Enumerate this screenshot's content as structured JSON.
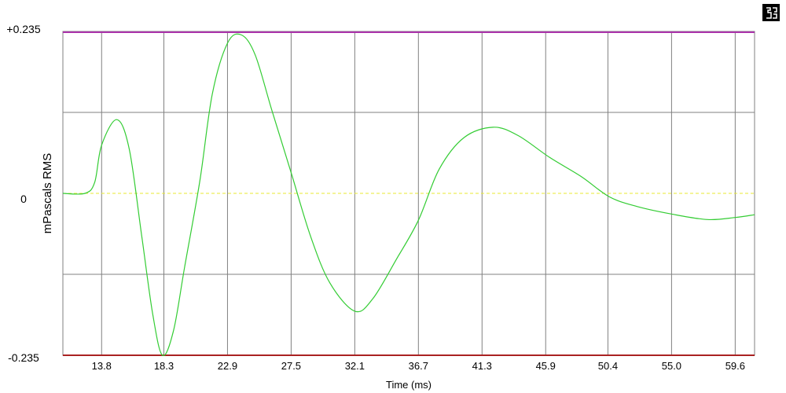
{
  "chart_data": {
    "type": "line",
    "title": "",
    "xlabel": "Time (ms)",
    "ylabel": "mPascals RMS",
    "xlim": [
      11.0,
      61.0
    ],
    "ylim": [
      -0.235,
      0.235
    ],
    "x_ticks": [
      "13.8",
      "18.3",
      "22.9",
      "27.5",
      "32.1",
      "36.7",
      "41.3",
      "45.9",
      "50.4",
      "55.0",
      "59.6"
    ],
    "x_tick_values": [
      13.8,
      18.3,
      22.9,
      27.5,
      32.1,
      36.7,
      41.3,
      45.9,
      50.4,
      55.0,
      59.6
    ],
    "y_ticks": [
      "+0.235",
      "0",
      "-0.235"
    ],
    "y_tick_values": [
      0.235,
      0,
      -0.235
    ],
    "grid": true,
    "colors": {
      "series": "#33cc33",
      "grid": "#808080",
      "upper_limit": "#aa33aa",
      "lower_limit": "#aa2222",
      "zero": "#e8e830"
    },
    "series": [
      {
        "x": [
          11.0,
          12.6,
          13.3,
          13.8,
          14.9,
          15.8,
          16.7,
          17.5,
          18.2,
          19.0,
          19.8,
          20.9,
          21.8,
          22.9,
          23.9,
          24.9,
          26.1,
          27.5,
          28.9,
          30.3,
          32.1,
          33.4,
          35.1,
          36.7,
          38.2,
          40.0,
          42.1,
          43.9,
          46.2,
          48.5,
          50.5,
          52.5,
          55.0,
          57.6,
          59.6,
          61.0
        ],
        "y": [
          0,
          0,
          0.016,
          0.07,
          0.107,
          0.064,
          -0.062,
          -0.176,
          -0.235,
          -0.199,
          -0.107,
          0.018,
          0.144,
          0.218,
          0.23,
          0.201,
          0.121,
          0.03,
          -0.062,
          -0.13,
          -0.171,
          -0.153,
          -0.096,
          -0.039,
          0.035,
          0.081,
          0.096,
          0.084,
          0.052,
          0.024,
          -0.005,
          -0.019,
          -0.03,
          -0.038,
          -0.035,
          -0.031
        ]
      }
    ]
  },
  "corner_icon": "app-logo-icon"
}
